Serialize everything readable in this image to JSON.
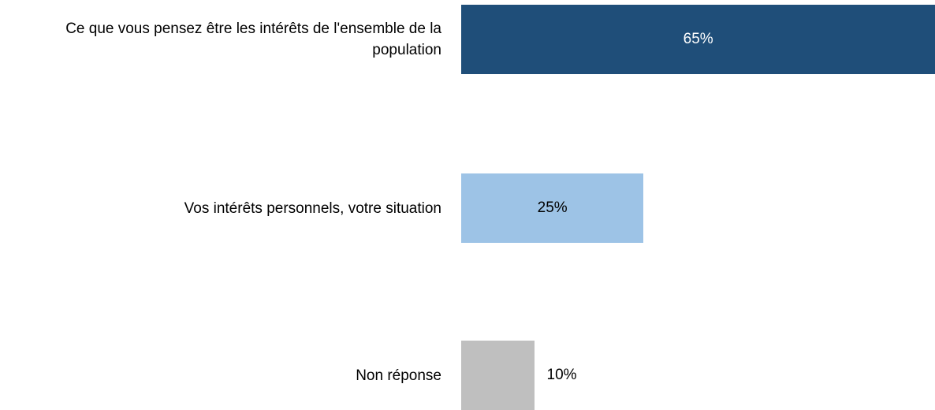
{
  "chart_data": {
    "type": "bar",
    "orientation": "horizontal",
    "categories": [
      "Ce que vous pensez être les intérêts de l'ensemble de la population",
      "Vos intérêts personnels, votre situation",
      "Non réponse"
    ],
    "values": [
      65,
      25,
      10
    ],
    "value_labels": [
      "65%",
      "25%",
      "10%"
    ],
    "colors": [
      "#1f4e79",
      "#9dc3e6",
      "#bfbfbf"
    ]
  }
}
